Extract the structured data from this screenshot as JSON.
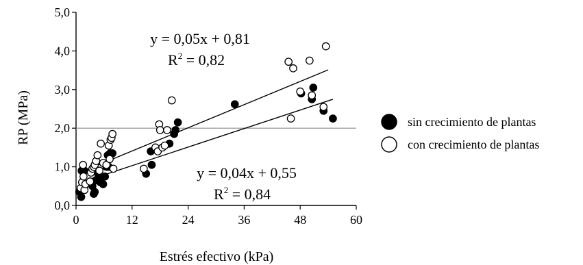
{
  "chart_data": {
    "type": "scatter",
    "xlabel": "Estrés efectivo (kPa)",
    "ylabel": "RP (MPa)",
    "xlim": [
      0,
      60
    ],
    "ylim": [
      0,
      5
    ],
    "xticks": [
      0,
      12,
      24,
      36,
      48,
      60
    ],
    "xtick_labels": [
      "0",
      "12",
      "24",
      "36",
      "48",
      "60"
    ],
    "yticks": [
      0,
      1,
      2,
      3,
      4,
      5
    ],
    "ytick_labels": [
      "0,0",
      "1,0",
      "2,0",
      "3,0",
      "4,0",
      "5,0"
    ],
    "grid": false,
    "legend_position": "right",
    "reference_line": {
      "y": 2.0,
      "color": "#888888"
    },
    "series": [
      {
        "name": "sin crecimiento de plantas",
        "marker": "filled",
        "color": "#000000",
        "fit": {
          "slope": 0.04,
          "intercept": 0.55,
          "x_range": [
            0.5,
            55
          ],
          "equation": "y = 0,04x + 0,55",
          "r2_label": "R",
          "r2_value": " = 0,84"
        },
        "points": [
          [
            0.7,
            0.35
          ],
          [
            1.1,
            0.22
          ],
          [
            1.2,
            0.9
          ],
          [
            1.5,
            0.5
          ],
          [
            1.8,
            0.9
          ],
          [
            3.5,
            0.5
          ],
          [
            3.8,
            0.3
          ],
          [
            4.0,
            0.35
          ],
          [
            4.2,
            0.65
          ],
          [
            4.5,
            0.9
          ],
          [
            4.6,
            0.85
          ],
          [
            4.8,
            0.8
          ],
          [
            5.2,
            0.6
          ],
          [
            5.5,
            0.7
          ],
          [
            5.8,
            0.55
          ],
          [
            6.2,
            0.75
          ],
          [
            6.5,
            1.0
          ],
          [
            6.8,
            1.3
          ],
          [
            7.0,
            1.0
          ],
          [
            7.3,
            1.35
          ],
          [
            7.8,
            1.35
          ],
          [
            15.0,
            0.82
          ],
          [
            16.0,
            1.4
          ],
          [
            16.2,
            1.05
          ],
          [
            17.5,
            1.45
          ],
          [
            20.0,
            1.6
          ],
          [
            21.0,
            1.85
          ],
          [
            21.3,
            1.95
          ],
          [
            21.8,
            2.15
          ],
          [
            34.0,
            2.62
          ],
          [
            48.2,
            2.9
          ],
          [
            50.5,
            2.75
          ],
          [
            50.8,
            3.05
          ],
          [
            53.0,
            2.45
          ],
          [
            55.0,
            2.25
          ]
        ]
      },
      {
        "name": "con crecimiento de plantas",
        "marker": "open",
        "color": "#000000",
        "fit": {
          "slope": 0.05,
          "intercept": 0.81,
          "x_range": [
            0.5,
            54
          ],
          "equation": "y = 0,05x + 0,81",
          "r2_label": "R",
          "r2_value": " = 0,82"
        },
        "points": [
          [
            1.0,
            0.45
          ],
          [
            1.3,
            0.6
          ],
          [
            1.5,
            1.05
          ],
          [
            1.6,
            0.75
          ],
          [
            1.8,
            0.4
          ],
          [
            2.0,
            0.55
          ],
          [
            3.0,
            0.62
          ],
          [
            3.2,
            0.85
          ],
          [
            3.5,
            0.95
          ],
          [
            3.8,
            1.0
          ],
          [
            4.0,
            1.05
          ],
          [
            4.3,
            1.15
          ],
          [
            4.6,
            1.3
          ],
          [
            5.0,
            0.9
          ],
          [
            5.3,
            1.6
          ],
          [
            5.8,
            1.1
          ],
          [
            6.5,
            1.05
          ],
          [
            7.0,
            1.55
          ],
          [
            7.2,
            1.2
          ],
          [
            7.4,
            1.7
          ],
          [
            7.6,
            1.75
          ],
          [
            7.8,
            1.85
          ],
          [
            8.0,
            0.95
          ],
          [
            14.5,
            0.95
          ],
          [
            17.0,
            1.5
          ],
          [
            17.5,
            1.4
          ],
          [
            17.8,
            2.1
          ],
          [
            18.0,
            1.95
          ],
          [
            18.5,
            1.5
          ],
          [
            19.0,
            1.55
          ],
          [
            19.5,
            1.95
          ],
          [
            20.5,
            2.72
          ],
          [
            46.0,
            2.25
          ],
          [
            45.5,
            3.72
          ],
          [
            46.5,
            3.55
          ],
          [
            48.0,
            2.95
          ],
          [
            50.0,
            3.75
          ],
          [
            50.5,
            2.85
          ],
          [
            53.0,
            2.55
          ],
          [
            53.5,
            4.12
          ]
        ]
      }
    ]
  }
}
